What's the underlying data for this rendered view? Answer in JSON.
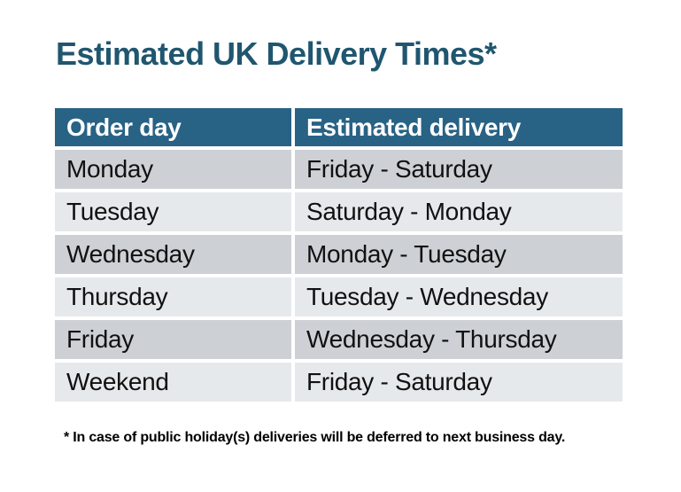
{
  "page": {
    "title": "Estimated UK Delivery Times*"
  },
  "table": {
    "columns": [
      "Order day",
      "Estimated delivery"
    ],
    "rows": [
      [
        "Monday",
        "Friday - Saturday"
      ],
      [
        "Tuesday",
        "Saturday - Monday"
      ],
      [
        "Wednesday",
        "Monday - Tuesday"
      ],
      [
        "Thursday",
        "Tuesday - Wednesday"
      ],
      [
        "Friday",
        "Wednesday - Thursday"
      ],
      [
        "Weekend",
        "Friday - Saturday"
      ]
    ]
  },
  "footnote": "* In case of public holiday(s) deliveries will be deferred to next business day.",
  "colors": {
    "background": "#ffffff",
    "title": "#20566f",
    "header_bg": "#286285",
    "header_text": "#ffffff",
    "row_odd": "#cdd1d6",
    "row_even": "#e6e9eb",
    "cell_text": "#111111",
    "footnote_text": "#000000"
  }
}
